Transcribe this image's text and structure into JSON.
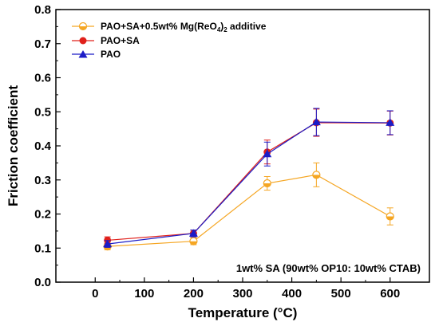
{
  "chart_data": {
    "type": "line",
    "xlabel": "Temperature (°C)",
    "ylabel": "Friction coefficient",
    "xlim": [
      -80,
      680
    ],
    "ylim": [
      0.0,
      0.8
    ],
    "xticks": [
      0,
      100,
      200,
      300,
      400,
      500,
      600
    ],
    "yticks": [
      0.0,
      0.1,
      0.2,
      0.3,
      0.4,
      0.5,
      0.6,
      0.7,
      0.8
    ],
    "xtick_labels": [
      "0",
      "100",
      "200",
      "300",
      "400",
      "500",
      "600"
    ],
    "ytick_labels": [
      "0.0",
      "0.1",
      "0.2",
      "0.3",
      "0.4",
      "0.5",
      "0.6",
      "0.7",
      "0.8"
    ],
    "grid": false,
    "legend_position": "top-left",
    "annotation": "1wt% SA (90wt% OP10: 10wt% CTAB)",
    "x": [
      25,
      200,
      350,
      450,
      600
    ],
    "series": [
      {
        "name_main": "PAO+SA+0.5wt% Mg(ReO",
        "name_sub1": "4",
        "name_mid": ")",
        "name_sub2": "2",
        "name_tail": " additive",
        "color": "#f5a623",
        "marker": "half-circle",
        "values": [
          0.105,
          0.12,
          0.29,
          0.315,
          0.193
        ],
        "errors": [
          0.01,
          0.01,
          0.02,
          0.035,
          0.025
        ]
      },
      {
        "name": "PAO+SA",
        "color": "#e0201b",
        "marker": "circle",
        "values": [
          0.123,
          0.143,
          0.382,
          0.468,
          0.467
        ],
        "errors": [
          0.01,
          0.01,
          0.035,
          0.04,
          0.035
        ]
      },
      {
        "name": "PAO",
        "color": "#1c1cc7",
        "marker": "triangle",
        "values": [
          0.112,
          0.143,
          0.376,
          0.47,
          0.468
        ],
        "errors": [
          0.01,
          0.01,
          0.035,
          0.04,
          0.035
        ]
      }
    ]
  }
}
